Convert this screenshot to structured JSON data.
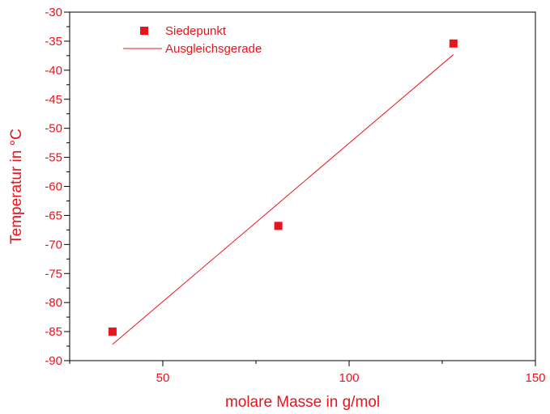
{
  "chart_data": {
    "type": "scatter",
    "title": "",
    "xlabel": "molare Masse in g/mol",
    "ylabel": "Temperatur in °C",
    "xlim": [
      25,
      150
    ],
    "ylim": [
      -90,
      -30
    ],
    "xticks": [
      50,
      100,
      150
    ],
    "yticks": [
      -30,
      -35,
      -40,
      -45,
      -50,
      -55,
      -60,
      -65,
      -70,
      -75,
      -80,
      -85,
      -90
    ],
    "xtick_labels": [
      "50",
      "100",
      "150"
    ],
    "ytick_labels": [
      "-30",
      "-35",
      "-40",
      "-45",
      "-50",
      "-55",
      "-60",
      "-65",
      "-70",
      "-75",
      "-80",
      "-85",
      "-90"
    ],
    "grid": false,
    "legend_position": "top-left",
    "series": [
      {
        "name": "Siedepunkt",
        "kind": "scatter",
        "marker": "square",
        "x": [
          36.5,
          81,
          128
        ],
        "y": [
          -85,
          -66.8,
          -35.4
        ]
      },
      {
        "name": "Ausgleichsgerade",
        "kind": "line",
        "x": [
          36.5,
          128
        ],
        "y": [
          -87.2,
          -37.3
        ]
      }
    ],
    "colors": {
      "series": "#e8141c",
      "axis": "#000000"
    }
  }
}
